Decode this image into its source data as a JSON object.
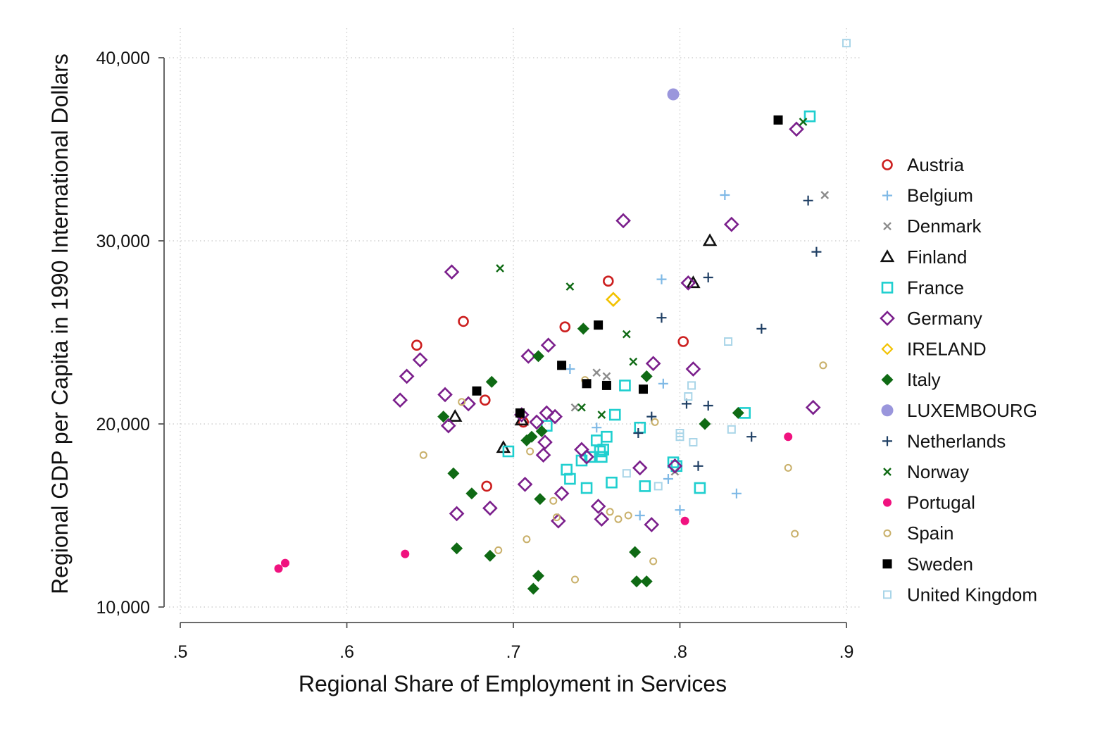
{
  "chart_data": {
    "type": "scatter",
    "title": "",
    "xlabel": "Regional Share of Employment in Services",
    "ylabel": "Regional GDP per Capita in 1990 International Dollars",
    "xlim": [
      0.5,
      0.9
    ],
    "ylim": [
      10000,
      40000
    ],
    "x_ticks": [
      ".5",
      ".6",
      ".7",
      ".8",
      ".9"
    ],
    "y_ticks": [
      "10,000",
      "20,000",
      "30,000",
      "40,000"
    ],
    "grid": true,
    "legend_position": "right",
    "series": [
      {
        "name": "Austria",
        "marker": "circle-open",
        "color": "#cc1f1f",
        "points": [
          [
            0.642,
            24300
          ],
          [
            0.67,
            25600
          ],
          [
            0.683,
            21300
          ],
          [
            0.684,
            16600
          ],
          [
            0.706,
            20100
          ],
          [
            0.731,
            25300
          ],
          [
            0.757,
            27800
          ],
          [
            0.802,
            24500
          ]
        ]
      },
      {
        "name": "Belgium",
        "marker": "plus",
        "color": "#7fb9e6",
        "points": [
          [
            0.734,
            23000
          ],
          [
            0.75,
            19800
          ],
          [
            0.776,
            15000
          ],
          [
            0.789,
            27900
          ],
          [
            0.79,
            22200
          ],
          [
            0.793,
            17000
          ],
          [
            0.8,
            15300
          ],
          [
            0.827,
            32500
          ],
          [
            0.834,
            16200
          ]
        ]
      },
      {
        "name": "Denmark",
        "marker": "x",
        "color": "#8c8c8c",
        "points": [
          [
            0.737,
            20900
          ],
          [
            0.75,
            22800
          ],
          [
            0.756,
            22600
          ],
          [
            0.797,
            17400
          ],
          [
            0.887,
            32500
          ]
        ]
      },
      {
        "name": "Finland",
        "marker": "triangle-open",
        "color": "#111111",
        "points": [
          [
            0.665,
            20400
          ],
          [
            0.694,
            18700
          ],
          [
            0.705,
            20200
          ],
          [
            0.808,
            27700
          ],
          [
            0.818,
            30000
          ]
        ]
      },
      {
        "name": "France",
        "marker": "square-open",
        "color": "#1fcfcf",
        "points": [
          [
            0.697,
            18500
          ],
          [
            0.72,
            19900
          ],
          [
            0.732,
            17500
          ],
          [
            0.734,
            17000
          ],
          [
            0.741,
            18000
          ],
          [
            0.744,
            16500
          ],
          [
            0.746,
            18200
          ],
          [
            0.75,
            19100
          ],
          [
            0.752,
            18500
          ],
          [
            0.753,
            18200
          ],
          [
            0.754,
            18600
          ],
          [
            0.756,
            19300
          ],
          [
            0.759,
            16800
          ],
          [
            0.761,
            20500
          ],
          [
            0.767,
            22100
          ],
          [
            0.776,
            19800
          ],
          [
            0.779,
            16600
          ],
          [
            0.796,
            17900
          ],
          [
            0.798,
            17700
          ],
          [
            0.812,
            16500
          ],
          [
            0.839,
            20600
          ],
          [
            0.878,
            36800
          ]
        ]
      },
      {
        "name": "Germany",
        "marker": "diamond-open",
        "color": "#7b1f8c",
        "points": [
          [
            0.632,
            21300
          ],
          [
            0.636,
            22600
          ],
          [
            0.644,
            23500
          ],
          [
            0.659,
            21600
          ],
          [
            0.661,
            19900
          ],
          [
            0.663,
            28300
          ],
          [
            0.666,
            15100
          ],
          [
            0.673,
            21100
          ],
          [
            0.686,
            15400
          ],
          [
            0.705,
            20500
          ],
          [
            0.707,
            16700
          ],
          [
            0.709,
            23700
          ],
          [
            0.714,
            20100
          ],
          [
            0.718,
            18300
          ],
          [
            0.719,
            19000
          ],
          [
            0.72,
            20600
          ],
          [
            0.721,
            24300
          ],
          [
            0.725,
            20400
          ],
          [
            0.727,
            14700
          ],
          [
            0.729,
            16200
          ],
          [
            0.741,
            18600
          ],
          [
            0.744,
            18200
          ],
          [
            0.751,
            15500
          ],
          [
            0.753,
            14800
          ],
          [
            0.766,
            31100
          ],
          [
            0.776,
            17600
          ],
          [
            0.783,
            14500
          ],
          [
            0.784,
            23300
          ],
          [
            0.797,
            17700
          ],
          [
            0.805,
            27700
          ],
          [
            0.808,
            23000
          ],
          [
            0.831,
            30900
          ],
          [
            0.87,
            36100
          ],
          [
            0.88,
            20900
          ]
        ]
      },
      {
        "name": "IRELAND",
        "marker": "diamond-open",
        "color": "#f2c200",
        "points": [
          [
            0.76,
            26800
          ]
        ]
      },
      {
        "name": "Italy",
        "marker": "diamond-filled",
        "color": "#0f6a14",
        "points": [
          [
            0.658,
            20400
          ],
          [
            0.664,
            17300
          ],
          [
            0.666,
            13200
          ],
          [
            0.675,
            16200
          ],
          [
            0.686,
            12800
          ],
          [
            0.687,
            22300
          ],
          [
            0.708,
            19100
          ],
          [
            0.711,
            19300
          ],
          [
            0.712,
            11000
          ],
          [
            0.715,
            23700
          ],
          [
            0.715,
            11700
          ],
          [
            0.716,
            15900
          ],
          [
            0.717,
            19600
          ],
          [
            0.742,
            25200
          ],
          [
            0.773,
            13000
          ],
          [
            0.774,
            11400
          ],
          [
            0.78,
            11400
          ],
          [
            0.78,
            22600
          ],
          [
            0.815,
            20000
          ],
          [
            0.835,
            20600
          ]
        ]
      },
      {
        "name": "LUXEMBOURG",
        "marker": "circle-filled",
        "color": "#9a96dc",
        "points": [
          [
            0.796,
            38000
          ]
        ]
      },
      {
        "name": "Netherlands",
        "marker": "plus",
        "color": "#1f3f64",
        "points": [
          [
            0.775,
            19500
          ],
          [
            0.783,
            20400
          ],
          [
            0.789,
            25800
          ],
          [
            0.804,
            21100
          ],
          [
            0.811,
            17700
          ],
          [
            0.817,
            28000
          ],
          [
            0.817,
            21000
          ],
          [
            0.843,
            19300
          ],
          [
            0.849,
            25200
          ],
          [
            0.877,
            32200
          ],
          [
            0.882,
            29400
          ]
        ]
      },
      {
        "name": "Norway",
        "marker": "x",
        "color": "#0f6a14",
        "points": [
          [
            0.692,
            28500
          ],
          [
            0.734,
            27500
          ],
          [
            0.741,
            20900
          ],
          [
            0.753,
            20500
          ],
          [
            0.768,
            24900
          ],
          [
            0.772,
            23400
          ],
          [
            0.874,
            36500
          ]
        ]
      },
      {
        "name": "Portugal",
        "marker": "circle-filled",
        "color": "#f0127f",
        "points": [
          [
            0.559,
            12100
          ],
          [
            0.563,
            12400
          ],
          [
            0.635,
            12900
          ],
          [
            0.803,
            14700
          ],
          [
            0.865,
            19300
          ]
        ]
      },
      {
        "name": "Spain",
        "marker": "circle-open-small",
        "color": "#c9b06a",
        "points": [
          [
            0.646,
            18300
          ],
          [
            0.669,
            21200
          ],
          [
            0.691,
            13100
          ],
          [
            0.708,
            13700
          ],
          [
            0.71,
            18500
          ],
          [
            0.724,
            15800
          ],
          [
            0.726,
            14900
          ],
          [
            0.737,
            11500
          ],
          [
            0.743,
            22400
          ],
          [
            0.758,
            15200
          ],
          [
            0.763,
            14800
          ],
          [
            0.769,
            15000
          ],
          [
            0.784,
            12500
          ],
          [
            0.785,
            20100
          ],
          [
            0.865,
            17600
          ],
          [
            0.869,
            14000
          ],
          [
            0.886,
            23200
          ]
        ]
      },
      {
        "name": "Sweden",
        "marker": "square-filled",
        "color": "#000000",
        "points": [
          [
            0.678,
            21800
          ],
          [
            0.704,
            20600
          ],
          [
            0.729,
            23200
          ],
          [
            0.744,
            22200
          ],
          [
            0.751,
            25400
          ],
          [
            0.756,
            22100
          ],
          [
            0.778,
            21900
          ],
          [
            0.859,
            36600
          ]
        ]
      },
      {
        "name": "United Kingdom",
        "marker": "square-open-small",
        "color": "#a9d5e8",
        "points": [
          [
            0.768,
            17300
          ],
          [
            0.787,
            16600
          ],
          [
            0.8,
            19500
          ],
          [
            0.8,
            19300
          ],
          [
            0.805,
            21500
          ],
          [
            0.807,
            22100
          ],
          [
            0.808,
            19000
          ],
          [
            0.829,
            24500
          ],
          [
            0.831,
            19700
          ],
          [
            0.9,
            40800
          ]
        ]
      }
    ]
  }
}
